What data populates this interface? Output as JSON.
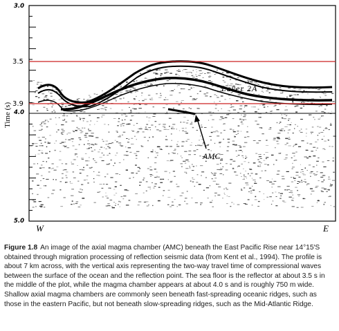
{
  "figure": {
    "y_axis_label": "Time (s)",
    "ticks": {
      "top": "3.0",
      "sea_floor": "3.5",
      "chamber": "3.9",
      "four": "4.0",
      "bottom": "5.0"
    },
    "left_dir": "W",
    "right_dir": "E",
    "layer_label": "Layer 2A",
    "amc_label": "AMC",
    "colors": {
      "marker_line": "#cc2222",
      "reflector": "#000000",
      "paper": "#ffffff"
    }
  },
  "caption": {
    "label": "Figure 1.8",
    "text": "An image of the axial magma chamber (AMC) beneath the East Pacific Rise near 14°15′S obtained through migration processing of reflection seismic data (from Kent et al., 1994). The profile is about 7 km across, with the vertical axis representing the two-way travel time of compressional waves between the surface of the ocean and the reflection point. The sea floor is the reflector at about 3.5 s in the middle of the plot, while the magma chamber appears at about 4.0 s and is roughly 750 m wide. Shallow axial magma chambers are commonly seen beneath fast-spreading oceanic ridges, such as those in the eastern Pacific, but not beneath slow-spreading ridges, such as the Mid-Atlantic Ridge."
  }
}
